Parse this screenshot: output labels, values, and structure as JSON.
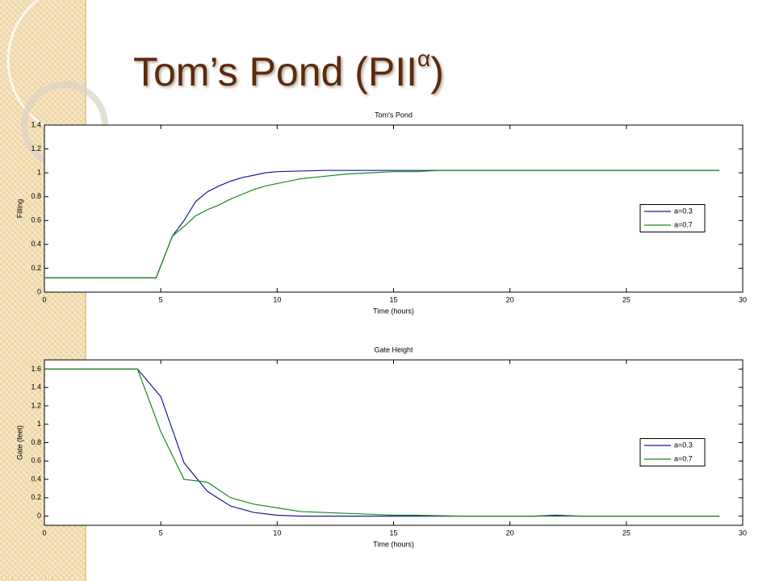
{
  "slide": {
    "title": "Tom’s Pond (PII",
    "title_superscript": "α",
    "title_end": ")"
  },
  "chart_data": [
    {
      "type": "line",
      "title": "Tom's Pond",
      "xlabel": "Time (hours)",
      "ylabel": "Filling",
      "x": [
        0,
        1,
        2,
        3,
        4,
        4.8,
        5.5,
        6,
        6.5,
        7,
        7.5,
        8,
        8.5,
        9,
        9.5,
        10,
        11,
        12,
        13,
        14,
        15,
        16,
        17,
        18,
        19,
        20,
        21,
        22,
        23,
        24,
        25,
        26,
        27,
        28,
        29
      ],
      "series": [
        {
          "name": "a=0.3",
          "color": "#1a1a9a",
          "values": [
            0.12,
            0.12,
            0.12,
            0.12,
            0.12,
            0.12,
            0.47,
            0.6,
            0.76,
            0.84,
            0.89,
            0.93,
            0.96,
            0.98,
            1.0,
            1.01,
            1.015,
            1.02,
            1.02,
            1.02,
            1.02,
            1.02,
            1.02,
            1.02,
            1.02,
            1.02,
            1.02,
            1.02,
            1.02,
            1.02,
            1.02,
            1.02,
            1.02,
            1.02,
            1.02
          ]
        },
        {
          "name": "a=0.7",
          "color": "#1a8a1a",
          "values": [
            0.12,
            0.12,
            0.12,
            0.12,
            0.12,
            0.12,
            0.47,
            0.55,
            0.64,
            0.69,
            0.73,
            0.78,
            0.82,
            0.86,
            0.89,
            0.91,
            0.95,
            0.97,
            0.99,
            1.0,
            1.01,
            1.01,
            1.02,
            1.02,
            1.02,
            1.02,
            1.02,
            1.02,
            1.02,
            1.02,
            1.02,
            1.02,
            1.02,
            1.02,
            1.02
          ]
        }
      ],
      "xlim": [
        0,
        30
      ],
      "xticks": [
        0,
        5,
        10,
        15,
        20,
        25,
        30
      ],
      "ylim": [
        0,
        1.4
      ],
      "yticks": [
        0,
        0.2,
        0.4,
        0.6,
        0.8,
        1,
        1.2,
        1.4
      ],
      "legend": "right"
    },
    {
      "type": "line",
      "title": "Gate Height",
      "xlabel": "Time (hours)",
      "ylabel": "Gate (feet)",
      "x": [
        0,
        1,
        2,
        3,
        4,
        5,
        6,
        7,
        8,
        9,
        10,
        11,
        12,
        13,
        14,
        15,
        16,
        17,
        18,
        19,
        20,
        21,
        22,
        23,
        24,
        25,
        26,
        27,
        28,
        29
      ],
      "series": [
        {
          "name": "a=0.3",
          "color": "#1a1a9a",
          "values": [
            1.6,
            1.6,
            1.6,
            1.6,
            1.6,
            1.3,
            0.58,
            0.27,
            0.11,
            0.04,
            0.01,
            0,
            0,
            0,
            0,
            0,
            0,
            0,
            0,
            0,
            0,
            0,
            0.01,
            0,
            0,
            0,
            0,
            0,
            0,
            0
          ]
        },
        {
          "name": "a=0.7",
          "color": "#1a8a1a",
          "values": [
            1.6,
            1.6,
            1.6,
            1.6,
            1.6,
            0.92,
            0.4,
            0.37,
            0.2,
            0.13,
            0.09,
            0.05,
            0.04,
            0.03,
            0.02,
            0.01,
            0.01,
            0.005,
            0,
            0,
            0,
            0,
            0,
            0,
            0,
            0,
            0,
            0,
            0,
            0
          ]
        }
      ],
      "xlim": [
        0,
        30
      ],
      "xticks": [
        0,
        5,
        10,
        15,
        20,
        25,
        30
      ],
      "ylim": [
        -0.1,
        1.7
      ],
      "yticks": [
        0,
        0.2,
        0.4,
        0.6,
        0.8,
        1,
        1.2,
        1.4,
        1.6
      ],
      "legend": "right"
    }
  ]
}
